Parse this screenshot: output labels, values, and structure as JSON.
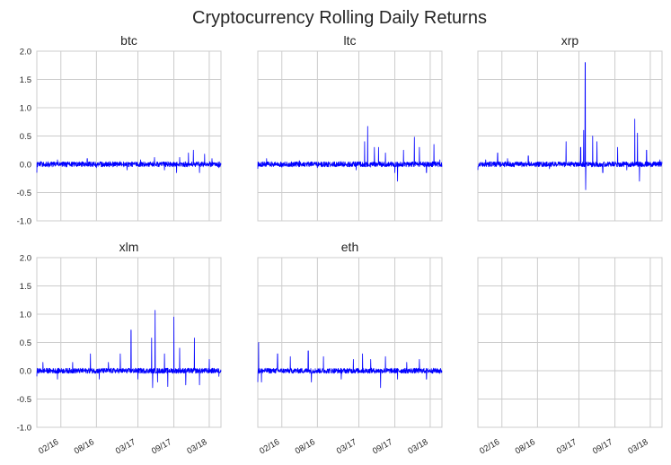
{
  "title": "Cryptocurrency Rolling Daily Returns",
  "chart_data": {
    "type": "line",
    "layout": "2x3 small multiples, shared x and y axes",
    "suptitle": "Cryptocurrency Rolling Daily Returns",
    "ylim": [
      -1.0,
      2.0
    ],
    "yticks": [
      "2.0",
      "1.5",
      "1.0",
      "0.5",
      "0.0",
      "-0.5",
      "-1.0"
    ],
    "xlim": [
      "2015-10-01",
      "2018-04-30"
    ],
    "xticks": [
      "02/16",
      "08/16",
      "03/17",
      "09/17",
      "03/18"
    ],
    "xtick_dates": [
      "2016-02-01",
      "2016-08-01",
      "2017-03-01",
      "2017-09-01",
      "2018-03-01"
    ],
    "grid": true,
    "line_color": "#0000ff",
    "panels": [
      {
        "name": "btc",
        "points": [
          [
            "2015-10-01",
            -0.15
          ],
          [
            "2015-10-20",
            0.05
          ],
          [
            "2015-12-01",
            -0.05
          ],
          [
            "2016-01-15",
            0.08
          ],
          [
            "2016-03-01",
            -0.05
          ],
          [
            "2016-06-15",
            0.1
          ],
          [
            "2016-08-01",
            -0.06
          ],
          [
            "2016-12-01",
            0.05
          ],
          [
            "2017-01-05",
            -0.1
          ],
          [
            "2017-03-15",
            0.08
          ],
          [
            "2017-05-25",
            0.12
          ],
          [
            "2017-07-15",
            -0.1
          ],
          [
            "2017-09-15",
            -0.15
          ],
          [
            "2017-10-01",
            0.12
          ],
          [
            "2017-11-15",
            0.2
          ],
          [
            "2017-12-10",
            0.25
          ],
          [
            "2018-01-10",
            -0.15
          ],
          [
            "2018-02-05",
            0.18
          ],
          [
            "2018-03-15",
            0.1
          ],
          [
            "2018-04-20",
            -0.06
          ]
        ]
      },
      {
        "name": "ltc",
        "points": [
          [
            "2015-10-01",
            -0.08
          ],
          [
            "2015-11-15",
            0.1
          ],
          [
            "2016-02-01",
            -0.05
          ],
          [
            "2016-05-01",
            0.06
          ],
          [
            "2016-08-01",
            -0.06
          ],
          [
            "2016-12-01",
            0.05
          ],
          [
            "2017-02-15",
            -0.1
          ],
          [
            "2017-03-30",
            0.4
          ],
          [
            "2017-04-15",
            0.67
          ],
          [
            "2017-05-01",
            -0.05
          ],
          [
            "2017-05-20",
            0.3
          ],
          [
            "2017-06-10",
            0.3
          ],
          [
            "2017-07-15",
            0.2
          ],
          [
            "2017-09-01",
            -0.15
          ],
          [
            "2017-09-15",
            -0.3
          ],
          [
            "2017-10-15",
            0.25
          ],
          [
            "2017-12-10",
            0.48
          ],
          [
            "2018-01-05",
            0.3
          ],
          [
            "2018-02-10",
            -0.15
          ],
          [
            "2018-03-20",
            0.35
          ],
          [
            "2018-04-20",
            0.08
          ]
        ]
      },
      {
        "name": "xrp",
        "points": [
          [
            "2015-10-01",
            -0.1
          ],
          [
            "2015-11-10",
            0.08
          ],
          [
            "2016-01-10",
            0.2
          ],
          [
            "2016-03-01",
            0.1
          ],
          [
            "2016-06-15",
            0.15
          ],
          [
            "2016-10-01",
            -0.08
          ],
          [
            "2016-12-25",
            0.4
          ],
          [
            "2017-03-10",
            0.3
          ],
          [
            "2017-03-25",
            0.6
          ],
          [
            "2017-04-02",
            1.8
          ],
          [
            "2017-04-05",
            -0.45
          ],
          [
            "2017-05-10",
            0.5
          ],
          [
            "2017-06-01",
            0.4
          ],
          [
            "2017-07-01",
            -0.15
          ],
          [
            "2017-09-15",
            0.3
          ],
          [
            "2017-11-01",
            -0.1
          ],
          [
            "2017-12-12",
            0.8
          ],
          [
            "2017-12-25",
            0.55
          ],
          [
            "2018-01-05",
            -0.3
          ],
          [
            "2018-02-10",
            0.25
          ],
          [
            "2018-04-20",
            0.08
          ]
        ]
      },
      {
        "name": "xlm",
        "points": [
          [
            "2015-10-01",
            -0.1
          ],
          [
            "2015-11-01",
            0.15
          ],
          [
            "2016-01-15",
            -0.15
          ],
          [
            "2016-04-01",
            0.15
          ],
          [
            "2016-07-01",
            0.3
          ],
          [
            "2016-08-15",
            -0.15
          ],
          [
            "2016-10-01",
            0.15
          ],
          [
            "2016-12-01",
            0.3
          ],
          [
            "2017-01-25",
            0.72
          ],
          [
            "2017-03-01",
            -0.15
          ],
          [
            "2017-05-10",
            0.58
          ],
          [
            "2017-05-15",
            -0.3
          ],
          [
            "2017-05-28",
            1.07
          ],
          [
            "2017-06-10",
            -0.2
          ],
          [
            "2017-07-15",
            0.3
          ],
          [
            "2017-08-01",
            -0.28
          ],
          [
            "2017-09-01",
            0.95
          ],
          [
            "2017-10-01",
            0.4
          ],
          [
            "2017-11-01",
            -0.25
          ],
          [
            "2017-12-15",
            0.58
          ],
          [
            "2018-01-10",
            -0.25
          ],
          [
            "2018-03-01",
            0.2
          ],
          [
            "2018-04-20",
            -0.1
          ]
        ]
      },
      {
        "name": "eth",
        "points": [
          [
            "2015-10-01",
            -0.2
          ],
          [
            "2015-10-05",
            0.5
          ],
          [
            "2015-10-20",
            -0.2
          ],
          [
            "2016-01-10",
            0.3
          ],
          [
            "2016-03-15",
            0.25
          ],
          [
            "2016-06-15",
            0.35
          ],
          [
            "2016-07-01",
            -0.2
          ],
          [
            "2016-09-01",
            0.25
          ],
          [
            "2016-12-01",
            -0.15
          ],
          [
            "2017-02-01",
            0.2
          ],
          [
            "2017-03-20",
            0.3
          ],
          [
            "2017-05-01",
            0.2
          ],
          [
            "2017-06-20",
            -0.3
          ],
          [
            "2017-07-15",
            0.25
          ],
          [
            "2017-09-15",
            -0.15
          ],
          [
            "2017-11-01",
            0.15
          ],
          [
            "2018-01-05",
            0.2
          ],
          [
            "2018-02-10",
            -0.15
          ],
          [
            "2018-04-20",
            -0.05
          ]
        ]
      },
      {
        "name": "",
        "points": []
      }
    ]
  }
}
